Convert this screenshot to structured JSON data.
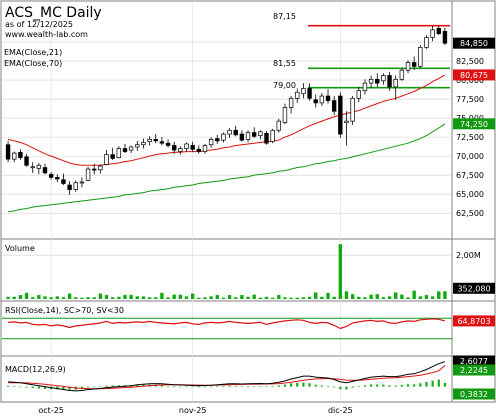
{
  "header": {
    "symbol_title": "ACS_MC Daily",
    "as_of": "as of 12/12/2025",
    "website": "www.wealth-lab.com"
  },
  "colors": {
    "ema21": "#dd1111",
    "ema70": "#119911",
    "bull_candle": "#ffffff",
    "bear_candle": "#000000",
    "volume_bar": "#11aa11",
    "rsi_line": "#dd1111",
    "macd_line": "#000000",
    "signal_line": "#dd1111",
    "hist_bar": "#11aa11",
    "level_line_red": "#dd1111",
    "level_line_green": "#119911",
    "price_badge": "#000000",
    "ema21_badge": "#dd1111",
    "ema70_badge": "#119911"
  },
  "chart_data": {
    "type": "candlestick",
    "price_pane": {
      "ylim": [
        59.5,
        90.0
      ],
      "tick_labels": [
        "62,500",
        "65,000",
        "67,500",
        "70,000",
        "72,500",
        "75,000",
        "77,500",
        "80,000",
        "82,500",
        "85,000"
      ],
      "ticks": [
        62.5,
        65,
        67.5,
        70,
        72.5,
        75,
        77.5,
        80,
        82.5,
        85
      ],
      "legend": [
        "EMA(Close,21)",
        "EMA(Close,70)"
      ],
      "level_lines": [
        {
          "label": "87,15",
          "value": 87.15,
          "color": "red"
        },
        {
          "label": "81,55",
          "value": 81.55,
          "color": "green"
        },
        {
          "label": "79,00",
          "value": 79.0,
          "color": "green"
        }
      ],
      "last_values": {
        "close": "84,850",
        "ema21": "80,675",
        "ema70": "74,250"
      },
      "candles": [
        [
          71.5,
          72.0,
          69.2,
          69.6
        ],
        [
          69.6,
          70.6,
          69.2,
          70.4
        ],
        [
          70.5,
          70.9,
          69.5,
          69.8
        ],
        [
          69.9,
          70.3,
          68.6,
          68.8
        ],
        [
          68.6,
          69.2,
          67.8,
          68.6
        ],
        [
          68.4,
          69.1,
          67.6,
          68.8
        ],
        [
          68.5,
          69.0,
          67.6,
          67.8
        ],
        [
          67.6,
          67.9,
          66.9,
          67.2
        ],
        [
          67.2,
          67.6,
          66.6,
          67.0
        ],
        [
          66.9,
          67.7,
          66.2,
          66.4
        ],
        [
          66.2,
          66.7,
          64.9,
          65.6
        ],
        [
          65.6,
          66.8,
          65.3,
          66.5
        ],
        [
          66.5,
          67.2,
          65.9,
          66.6
        ],
        [
          66.8,
          68.6,
          66.7,
          68.3
        ],
        [
          68.3,
          69.0,
          67.6,
          68.2
        ],
        [
          68.2,
          68.9,
          67.7,
          68.7
        ],
        [
          68.9,
          70.8,
          68.8,
          70.2
        ],
        [
          70.2,
          71.1,
          69.5,
          69.7
        ],
        [
          69.8,
          71.3,
          69.7,
          71.0
        ],
        [
          71.0,
          71.6,
          70.4,
          70.6
        ],
        [
          70.8,
          71.4,
          70.4,
          71.2
        ],
        [
          71.2,
          72.0,
          70.7,
          71.5
        ],
        [
          71.5,
          72.3,
          71.0,
          71.8
        ],
        [
          71.9,
          72.6,
          71.4,
          72.2
        ],
        [
          72.2,
          72.9,
          71.7,
          72.0
        ],
        [
          71.9,
          72.5,
          71.4,
          71.7
        ],
        [
          71.7,
          72.2,
          71.1,
          71.4
        ],
        [
          71.4,
          71.9,
          70.3,
          70.8
        ],
        [
          70.6,
          71.3,
          70.2,
          71.0
        ],
        [
          71.0,
          71.8,
          70.6,
          71.6
        ],
        [
          71.4,
          71.9,
          70.6,
          70.9
        ],
        [
          70.9,
          71.4,
          70.3,
          70.6
        ],
        [
          70.6,
          71.6,
          70.3,
          71.4
        ],
        [
          71.5,
          72.5,
          71.1,
          72.2
        ],
        [
          72.3,
          72.8,
          71.6,
          72.0
        ],
        [
          72.1,
          73.1,
          71.8,
          72.9
        ],
        [
          72.9,
          73.7,
          72.4,
          73.4
        ],
        [
          73.4,
          74.0,
          72.6,
          72.8
        ],
        [
          72.9,
          73.4,
          71.9,
          72.1
        ],
        [
          72.2,
          73.4,
          71.8,
          73.1
        ],
        [
          73.1,
          73.8,
          72.4,
          72.6
        ],
        [
          72.7,
          73.4,
          72.2,
          73.2
        ],
        [
          73.0,
          73.3,
          71.5,
          71.7
        ],
        [
          71.9,
          73.6,
          71.7,
          73.4
        ],
        [
          73.4,
          74.9,
          73.1,
          74.6
        ],
        [
          74.4,
          76.9,
          74.2,
          76.4
        ],
        [
          76.4,
          77.9,
          75.6,
          77.6
        ],
        [
          77.6,
          78.9,
          77.0,
          78.4
        ],
        [
          78.2,
          79.6,
          77.6,
          78.9
        ],
        [
          78.9,
          79.6,
          77.3,
          77.6
        ],
        [
          77.4,
          78.1,
          76.4,
          77.0
        ],
        [
          77.0,
          78.3,
          76.6,
          77.9
        ],
        [
          77.9,
          78.8,
          76.9,
          77.3
        ],
        [
          77.3,
          77.9,
          75.4,
          75.9
        ],
        [
          77.9,
          78.4,
          72.4,
          72.9
        ],
        [
          74.4,
          75.9,
          71.4,
          74.6
        ],
        [
          74.6,
          77.9,
          74.1,
          77.6
        ],
        [
          77.6,
          79.1,
          77.1,
          78.6
        ],
        [
          78.6,
          80.1,
          78.1,
          79.6
        ],
        [
          79.6,
          80.6,
          78.9,
          80.1
        ],
        [
          80.1,
          80.9,
          79.1,
          79.6
        ],
        [
          79.9,
          80.9,
          79.4,
          80.6
        ],
        [
          80.6,
          81.1,
          78.6,
          79.1
        ],
        [
          79.1,
          80.6,
          77.4,
          80.1
        ],
        [
          80.1,
          81.6,
          79.9,
          81.3
        ],
        [
          81.3,
          82.6,
          80.9,
          82.3
        ],
        [
          82.3,
          83.1,
          81.3,
          81.8
        ],
        [
          81.8,
          84.6,
          81.6,
          84.3
        ],
        [
          84.3,
          85.9,
          84.1,
          85.6
        ],
        [
          85.6,
          87.1,
          85.1,
          86.6
        ],
        [
          86.8,
          87.15,
          85.9,
          86.1
        ],
        [
          86.4,
          86.9,
          84.6,
          84.85
        ]
      ],
      "ema21": [
        72.2,
        72.0,
        71.8,
        71.5,
        71.1,
        70.7,
        70.3,
        70.0,
        69.7,
        69.4,
        69.1,
        68.9,
        68.8,
        68.8,
        68.8,
        68.8,
        68.9,
        69.0,
        69.1,
        69.3,
        69.4,
        69.6,
        69.8,
        70.0,
        70.2,
        70.3,
        70.4,
        70.5,
        70.5,
        70.6,
        70.6,
        70.6,
        70.7,
        70.8,
        70.9,
        71.1,
        71.2,
        71.4,
        71.5,
        71.6,
        71.7,
        71.8,
        71.9,
        72.0,
        72.1,
        72.5,
        72.8,
        73.2,
        73.6,
        74.0,
        74.3,
        74.6,
        74.9,
        75.2,
        75.4,
        75.6,
        75.8,
        76.0,
        76.3,
        76.6,
        76.9,
        77.2,
        77.4,
        77.6,
        77.9,
        78.2,
        78.5,
        78.9,
        79.3,
        79.8,
        80.2,
        80.675
      ],
      "ema70": [
        62.7,
        62.8,
        63.0,
        63.1,
        63.3,
        63.4,
        63.5,
        63.6,
        63.7,
        63.8,
        63.9,
        64.0,
        64.1,
        64.2,
        64.3,
        64.4,
        64.5,
        64.6,
        64.7,
        64.9,
        65.0,
        65.1,
        65.2,
        65.4,
        65.5,
        65.6,
        65.7,
        65.9,
        66.0,
        66.1,
        66.2,
        66.4,
        66.5,
        66.6,
        66.7,
        66.8,
        67.0,
        67.1,
        67.2,
        67.3,
        67.5,
        67.6,
        67.7,
        67.8,
        68.0,
        68.1,
        68.3,
        68.5,
        68.6,
        68.8,
        69.0,
        69.1,
        69.3,
        69.4,
        69.6,
        69.7,
        69.9,
        70.1,
        70.3,
        70.5,
        70.7,
        70.9,
        71.1,
        71.3,
        71.5,
        71.7,
        72.0,
        72.3,
        72.7,
        73.2,
        73.7,
        74.25
      ]
    },
    "volume_pane": {
      "label": "Volume",
      "tick_labels": [
        "2,00M"
      ],
      "ticks": [
        2.0
      ],
      "ylim": [
        0,
        2.6
      ],
      "last_value": "352,080",
      "values": [
        0.1,
        0.1,
        0.18,
        0.28,
        0.08,
        0.18,
        0.12,
        0.08,
        0.12,
        0.08,
        0.25,
        0.08,
        0.06,
        0.08,
        0.08,
        0.25,
        0.18,
        0.08,
        0.1,
        0.18,
        0.18,
        0.12,
        0.12,
        0.08,
        0.08,
        0.28,
        0.08,
        0.2,
        0.2,
        0.12,
        0.25,
        0.06,
        0.08,
        0.12,
        0.18,
        0.06,
        0.18,
        0.08,
        0.18,
        0.1,
        0.2,
        0.06,
        0.1,
        0.06,
        0.18,
        0.08,
        0.06,
        0.06,
        0.08,
        0.1,
        0.3,
        0.1,
        0.28,
        0.1,
        2.5,
        0.35,
        0.22,
        0.1,
        0.08,
        0.2,
        0.22,
        0.08,
        0.12,
        0.3,
        0.2,
        0.08,
        0.38,
        0.12,
        0.18,
        0.12,
        0.35,
        0.352
      ]
    },
    "rsi_pane": {
      "label": "RSI(Close,14), SC>70, SV<30",
      "ylim": [
        0,
        100
      ],
      "thresholds": [
        70,
        30
      ],
      "last_value": "64,8703",
      "values": [
        62,
        63,
        61,
        62,
        58,
        57,
        58,
        55,
        57,
        55,
        52,
        55,
        56,
        58,
        59,
        61,
        64,
        60,
        62,
        61,
        62,
        63,
        62,
        64,
        62,
        61,
        60,
        59,
        61,
        62,
        59,
        58,
        61,
        62,
        61,
        62,
        64,
        62,
        61,
        60,
        61,
        62,
        58,
        61,
        63,
        65,
        66,
        67,
        66,
        62,
        60,
        62,
        61,
        56,
        50,
        54,
        61,
        63,
        65,
        66,
        64,
        65,
        61,
        60,
        63,
        65,
        64,
        67,
        68,
        69,
        68,
        64.87
      ]
    },
    "macd_pane": {
      "label": "MACD(12,26,9)",
      "last_values": {
        "macd": "2,6077",
        "signal": "2,2245",
        "histogram": "0,3832"
      },
      "ylim": [
        -1.4,
        3.0
      ],
      "macd": [
        0.5,
        0.45,
        0.4,
        0.3,
        0.2,
        0.1,
        0.0,
        -0.1,
        -0.2,
        -0.3,
        -0.4,
        -0.45,
        -0.4,
        -0.3,
        -0.25,
        -0.2,
        -0.1,
        -0.05,
        0.0,
        0.05,
        0.1,
        0.2,
        0.25,
        0.3,
        0.32,
        0.3,
        0.25,
        0.2,
        0.18,
        0.15,
        0.12,
        0.1,
        0.12,
        0.15,
        0.2,
        0.25,
        0.3,
        0.3,
        0.28,
        0.3,
        0.32,
        0.33,
        0.3,
        0.35,
        0.45,
        0.6,
        0.8,
        0.95,
        1.1,
        1.1,
        1.0,
        0.95,
        0.9,
        0.75,
        0.5,
        0.4,
        0.55,
        0.7,
        0.85,
        1.0,
        1.05,
        1.1,
        1.05,
        1.05,
        1.15,
        1.3,
        1.35,
        1.55,
        1.8,
        2.1,
        2.4,
        2.6077
      ],
      "signal": [
        0.4,
        0.41,
        0.41,
        0.39,
        0.35,
        0.3,
        0.24,
        0.17,
        0.1,
        0.02,
        -0.07,
        -0.14,
        -0.19,
        -0.21,
        -0.22,
        -0.22,
        -0.2,
        -0.17,
        -0.14,
        -0.1,
        -0.06,
        -0.01,
        0.04,
        0.09,
        0.14,
        0.17,
        0.19,
        0.19,
        0.19,
        0.18,
        0.17,
        0.16,
        0.15,
        0.15,
        0.16,
        0.18,
        0.2,
        0.22,
        0.23,
        0.25,
        0.26,
        0.27,
        0.28,
        0.29,
        0.32,
        0.38,
        0.46,
        0.56,
        0.67,
        0.75,
        0.8,
        0.83,
        0.85,
        0.83,
        0.76,
        0.69,
        0.66,
        0.67,
        0.71,
        0.77,
        0.82,
        0.88,
        0.91,
        0.94,
        0.98,
        1.05,
        1.11,
        1.2,
        1.32,
        1.47,
        1.66,
        2.2245
      ],
      "histogram": [
        0.1,
        0.04,
        -0.01,
        -0.09,
        -0.15,
        -0.2,
        -0.24,
        -0.27,
        -0.3,
        -0.32,
        -0.33,
        -0.31,
        -0.21,
        -0.09,
        -0.03,
        0.02,
        0.1,
        0.12,
        0.14,
        0.15,
        0.16,
        0.21,
        0.21,
        0.21,
        0.18,
        0.13,
        0.06,
        0.01,
        -0.01,
        -0.03,
        -0.05,
        -0.06,
        -0.03,
        0.0,
        0.04,
        0.07,
        0.1,
        0.08,
        0.05,
        0.05,
        0.06,
        0.06,
        0.02,
        0.06,
        0.13,
        0.22,
        0.34,
        0.39,
        0.43,
        0.35,
        0.2,
        0.12,
        0.05,
        -0.08,
        -0.26,
        -0.29,
        -0.11,
        0.03,
        0.14,
        0.23,
        0.23,
        0.22,
        0.14,
        0.11,
        0.17,
        0.25,
        0.24,
        0.35,
        0.48,
        0.63,
        0.74,
        0.3832
      ]
    },
    "x_axis": {
      "labels": [
        {
          "text": "oct-25",
          "index": 7
        },
        {
          "text": "nov-25",
          "index": 30
        },
        {
          "text": "dic-25",
          "index": 54
        }
      ]
    }
  }
}
